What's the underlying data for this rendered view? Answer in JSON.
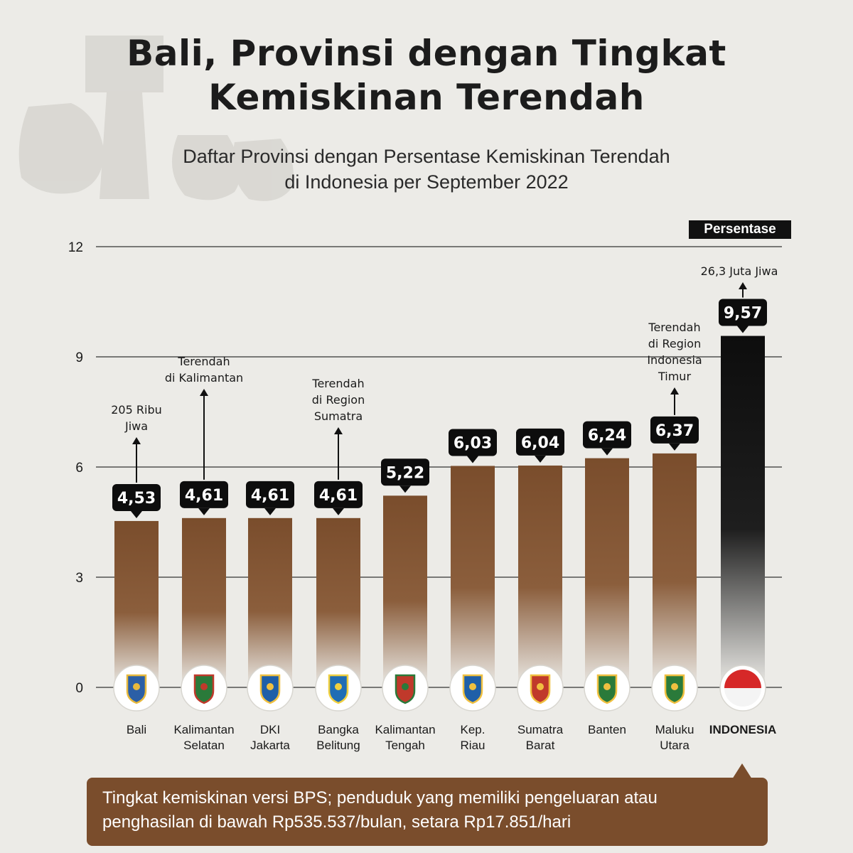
{
  "title_line1": "Bali, Provinsi dengan Tingkat",
  "title_line2": "Kemiskinan Terendah",
  "subtitle_line1": "Daftar Provinsi dengan Persentase Kemiskinan Terendah",
  "subtitle_line2": "di Indonesia per September 2022",
  "unit_label": "Persentase",
  "footnote": "Tingkat kemiskinan versi BPS; penduduk yang memiliki  pengeluaran atau penghasilan di bawah Rp535.537/bulan, setara Rp17.851/hari",
  "colors": {
    "bar_brown": "#7a4d2c",
    "bar_black": "#111111",
    "footnote_bg": "#7a4d2c",
    "background": "#ecebe7"
  },
  "chart_data": {
    "type": "bar",
    "ylim": [
      0,
      12
    ],
    "yticks": [
      "0",
      "3",
      "6",
      "9",
      "12"
    ],
    "ytick_values": [
      0,
      3,
      6,
      9,
      12
    ],
    "grid": true,
    "categories": [
      [
        "Bali"
      ],
      [
        "Kalimantan",
        "Selatan"
      ],
      [
        "DKI",
        "Jakarta"
      ],
      [
        "Bangka",
        "Belitung"
      ],
      [
        "Kalimantan",
        "Tengah"
      ],
      [
        "Kep.",
        "Riau"
      ],
      [
        "Sumatra",
        "Barat"
      ],
      [
        "Banten"
      ],
      [
        "Maluku",
        "Utara"
      ],
      [
        "INDONESIA"
      ]
    ],
    "values": [
      4.53,
      4.61,
      4.61,
      4.61,
      5.22,
      6.03,
      6.04,
      6.24,
      6.37,
      9.57
    ],
    "value_labels": [
      "4,53",
      "4,61",
      "4,61",
      "4,61",
      "5,22",
      "6,03",
      "6,04",
      "6,24",
      "6,37",
      "9,57"
    ],
    "annotations": [
      {
        "index": 0,
        "lines": [
          "205 Ribu",
          "Jiwa"
        ]
      },
      {
        "index": 1,
        "lines": [
          "Terendah",
          "di Kalimantan"
        ]
      },
      {
        "index": 3,
        "lines": [
          "Terendah",
          "di Region",
          "Sumatra"
        ]
      },
      {
        "index": 8,
        "lines": [
          "Terendah",
          "di Region",
          "Indonesia",
          "Timur"
        ]
      },
      {
        "index": 9,
        "lines": [
          "26,3 Juta Jiwa"
        ]
      }
    ],
    "icons": [
      "bali-emblem-icon",
      "kalimantan-selatan-emblem-icon",
      "dki-jakarta-emblem-icon",
      "bangka-belitung-emblem-icon",
      "kalimantan-tengah-emblem-icon",
      "kep-riau-emblem-icon",
      "sumatra-barat-emblem-icon",
      "banten-emblem-icon",
      "maluku-utara-emblem-icon",
      "indonesia-flag-icon"
    ]
  }
}
